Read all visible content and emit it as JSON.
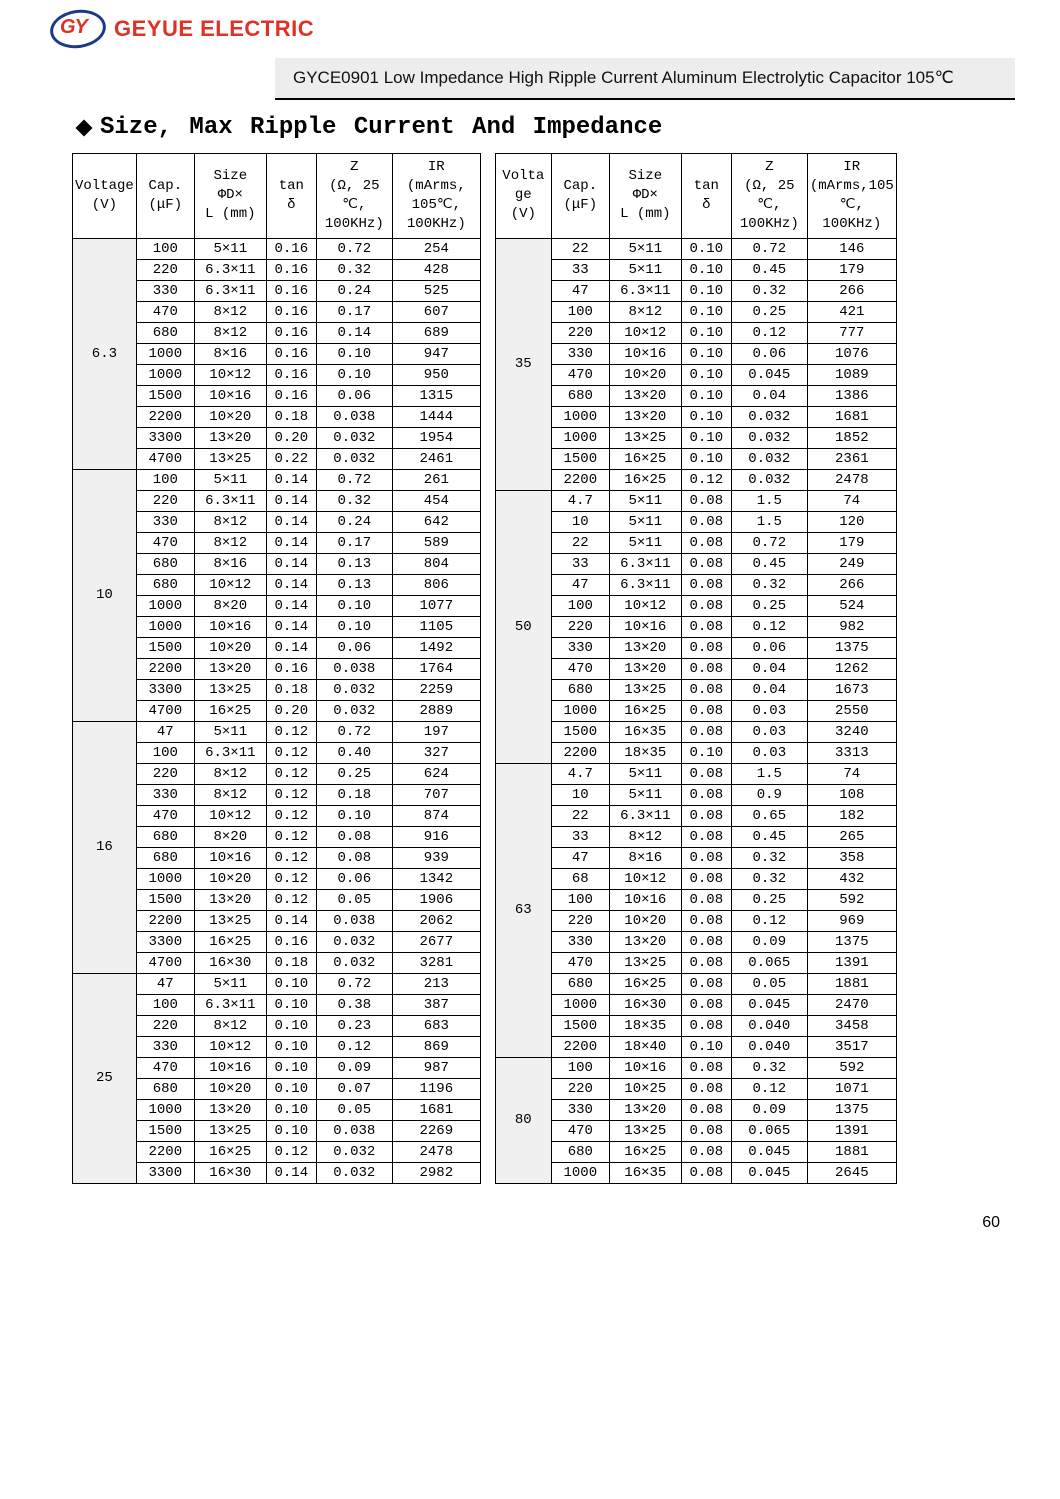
{
  "brand": {
    "logo_initials": "GY",
    "name": "GEYUE ELECTRIC"
  },
  "title_bar": "GYCE0901 Low Impedance High Ripple Current Aluminum Electrolytic Capacitor 105℃",
  "section_title": "Size, Max Ripple Current And Impedance",
  "page_number": "60",
  "colors": {
    "brand_red": "#e03124",
    "brand_blue": "#1b3a8a",
    "title_bg": "#ededed",
    "voltage_bg": "#f0f0f0",
    "border": "#000000",
    "text": "#000000"
  },
  "headers_left": {
    "voltage": "Voltage\n(V)",
    "cap": "Cap.\n(μF)",
    "size": "Size\nΦD×\nL (mm)",
    "tan": "tan\nδ",
    "z": "Z\n(Ω, 25\n℃,\n100KHz)",
    "ir": "IR\n(mArms,\n105℃,\n100KHz)"
  },
  "headers_right": {
    "voltage": "Volta\nge\n(V)",
    "cap": "Cap.\n(μF)",
    "size": "Size\nΦD×\nL (mm)",
    "tan": "tan\nδ",
    "z": "Z\n(Ω, 25\n℃,\n100KHz)",
    "ir": "IR\n(mArms,105\n℃, 100KHz)"
  },
  "left_groups": [
    {
      "voltage": "6.3",
      "rows": [
        {
          "cap": "100",
          "size": "5×11",
          "tan": "0.16",
          "z": "0.72",
          "ir": "254"
        },
        {
          "cap": "220",
          "size": "6.3×11",
          "tan": "0.16",
          "z": "0.32",
          "ir": "428"
        },
        {
          "cap": "330",
          "size": "6.3×11",
          "tan": "0.16",
          "z": "0.24",
          "ir": "525"
        },
        {
          "cap": "470",
          "size": "8×12",
          "tan": "0.16",
          "z": "0.17",
          "ir": "607"
        },
        {
          "cap": "680",
          "size": "8×12",
          "tan": "0.16",
          "z": "0.14",
          "ir": "689"
        },
        {
          "cap": "1000",
          "size": "8×16",
          "tan": "0.16",
          "z": "0.10",
          "ir": "947"
        },
        {
          "cap": "1000",
          "size": "10×12",
          "tan": "0.16",
          "z": "0.10",
          "ir": "950"
        },
        {
          "cap": "1500",
          "size": "10×16",
          "tan": "0.16",
          "z": "0.06",
          "ir": "1315"
        },
        {
          "cap": "2200",
          "size": "10×20",
          "tan": "0.18",
          "z": "0.038",
          "ir": "1444"
        },
        {
          "cap": "3300",
          "size": "13×20",
          "tan": "0.20",
          "z": "0.032",
          "ir": "1954"
        },
        {
          "cap": "4700",
          "size": "13×25",
          "tan": "0.22",
          "z": "0.032",
          "ir": "2461"
        }
      ]
    },
    {
      "voltage": "10",
      "rows": [
        {
          "cap": "100",
          "size": "5×11",
          "tan": "0.14",
          "z": "0.72",
          "ir": "261"
        },
        {
          "cap": "220",
          "size": "6.3×11",
          "tan": "0.14",
          "z": "0.32",
          "ir": "454"
        },
        {
          "cap": "330",
          "size": "8×12",
          "tan": "0.14",
          "z": "0.24",
          "ir": "642"
        },
        {
          "cap": "470",
          "size": "8×12",
          "tan": "0.14",
          "z": "0.17",
          "ir": "589"
        },
        {
          "cap": "680",
          "size": "8×16",
          "tan": "0.14",
          "z": "0.13",
          "ir": "804"
        },
        {
          "cap": "680",
          "size": "10×12",
          "tan": "0.14",
          "z": "0.13",
          "ir": "806"
        },
        {
          "cap": "1000",
          "size": "8×20",
          "tan": "0.14",
          "z": "0.10",
          "ir": "1077"
        },
        {
          "cap": "1000",
          "size": "10×16",
          "tan": "0.14",
          "z": "0.10",
          "ir": "1105"
        },
        {
          "cap": "1500",
          "size": "10×20",
          "tan": "0.14",
          "z": "0.06",
          "ir": "1492"
        },
        {
          "cap": "2200",
          "size": "13×20",
          "tan": "0.16",
          "z": "0.038",
          "ir": "1764"
        },
        {
          "cap": "3300",
          "size": "13×25",
          "tan": "0.18",
          "z": "0.032",
          "ir": "2259"
        },
        {
          "cap": "4700",
          "size": "16×25",
          "tan": "0.20",
          "z": "0.032",
          "ir": "2889"
        }
      ]
    },
    {
      "voltage": "16",
      "rows": [
        {
          "cap": "47",
          "size": "5×11",
          "tan": "0.12",
          "z": "0.72",
          "ir": "197"
        },
        {
          "cap": "100",
          "size": "6.3×11",
          "tan": "0.12",
          "z": "0.40",
          "ir": "327"
        },
        {
          "cap": "220",
          "size": "8×12",
          "tan": "0.12",
          "z": "0.25",
          "ir": "624"
        },
        {
          "cap": "330",
          "size": "8×12",
          "tan": "0.12",
          "z": "0.18",
          "ir": "707"
        },
        {
          "cap": "470",
          "size": "10×12",
          "tan": "0.12",
          "z": "0.10",
          "ir": "874"
        },
        {
          "cap": "680",
          "size": "8×20",
          "tan": "0.12",
          "z": "0.08",
          "ir": "916"
        },
        {
          "cap": "680",
          "size": "10×16",
          "tan": "0.12",
          "z": "0.08",
          "ir": "939"
        },
        {
          "cap": "1000",
          "size": "10×20",
          "tan": "0.12",
          "z": "0.06",
          "ir": "1342"
        },
        {
          "cap": "1500",
          "size": "13×20",
          "tan": "0.12",
          "z": "0.05",
          "ir": "1906"
        },
        {
          "cap": "2200",
          "size": "13×25",
          "tan": "0.14",
          "z": "0.038",
          "ir": "2062"
        },
        {
          "cap": "3300",
          "size": "16×25",
          "tan": "0.16",
          "z": "0.032",
          "ir": "2677"
        },
        {
          "cap": "4700",
          "size": "16×30",
          "tan": "0.18",
          "z": "0.032",
          "ir": "3281"
        }
      ]
    },
    {
      "voltage": "25",
      "rows": [
        {
          "cap": "47",
          "size": "5×11",
          "tan": "0.10",
          "z": "0.72",
          "ir": "213"
        },
        {
          "cap": "100",
          "size": "6.3×11",
          "tan": "0.10",
          "z": "0.38",
          "ir": "387"
        },
        {
          "cap": "220",
          "size": "8×12",
          "tan": "0.10",
          "z": "0.23",
          "ir": "683"
        },
        {
          "cap": "330",
          "size": "10×12",
          "tan": "0.10",
          "z": "0.12",
          "ir": "869"
        },
        {
          "cap": "470",
          "size": "10×16",
          "tan": "0.10",
          "z": "0.09",
          "ir": "987"
        },
        {
          "cap": "680",
          "size": "10×20",
          "tan": "0.10",
          "z": "0.07",
          "ir": "1196"
        },
        {
          "cap": "1000",
          "size": "13×20",
          "tan": "0.10",
          "z": "0.05",
          "ir": "1681"
        },
        {
          "cap": "1500",
          "size": "13×25",
          "tan": "0.10",
          "z": "0.038",
          "ir": "2269"
        },
        {
          "cap": "2200",
          "size": "16×25",
          "tan": "0.12",
          "z": "0.032",
          "ir": "2478"
        },
        {
          "cap": "3300",
          "size": "16×30",
          "tan": "0.14",
          "z": "0.032",
          "ir": "2982"
        }
      ]
    }
  ],
  "right_groups": [
    {
      "voltage": "35",
      "rows": [
        {
          "cap": "22",
          "size": "5×11",
          "tan": "0.10",
          "z": "0.72",
          "ir": "146"
        },
        {
          "cap": "33",
          "size": "5×11",
          "tan": "0.10",
          "z": "0.45",
          "ir": "179"
        },
        {
          "cap": "47",
          "size": "6.3×11",
          "tan": "0.10",
          "z": "0.32",
          "ir": "266"
        },
        {
          "cap": "100",
          "size": "8×12",
          "tan": "0.10",
          "z": "0.25",
          "ir": "421"
        },
        {
          "cap": "220",
          "size": "10×12",
          "tan": "0.10",
          "z": "0.12",
          "ir": "777"
        },
        {
          "cap": "330",
          "size": "10×16",
          "tan": "0.10",
          "z": "0.06",
          "ir": "1076"
        },
        {
          "cap": "470",
          "size": "10×20",
          "tan": "0.10",
          "z": "0.045",
          "ir": "1089"
        },
        {
          "cap": "680",
          "size": "13×20",
          "tan": "0.10",
          "z": "0.04",
          "ir": "1386"
        },
        {
          "cap": "1000",
          "size": "13×20",
          "tan": "0.10",
          "z": "0.032",
          "ir": "1681"
        },
        {
          "cap": "1000",
          "size": "13×25",
          "tan": "0.10",
          "z": "0.032",
          "ir": "1852"
        },
        {
          "cap": "1500",
          "size": "16×25",
          "tan": "0.10",
          "z": "0.032",
          "ir": "2361"
        },
        {
          "cap": "2200",
          "size": "16×25",
          "tan": "0.12",
          "z": "0.032",
          "ir": "2478"
        }
      ]
    },
    {
      "voltage": "50",
      "rows": [
        {
          "cap": "4.7",
          "size": "5×11",
          "tan": "0.08",
          "z": "1.5",
          "ir": "74"
        },
        {
          "cap": "10",
          "size": "5×11",
          "tan": "0.08",
          "z": "1.5",
          "ir": "120"
        },
        {
          "cap": "22",
          "size": "5×11",
          "tan": "0.08",
          "z": "0.72",
          "ir": "179"
        },
        {
          "cap": "33",
          "size": "6.3×11",
          "tan": "0.08",
          "z": "0.45",
          "ir": "249"
        },
        {
          "cap": "47",
          "size": "6.3×11",
          "tan": "0.08",
          "z": "0.32",
          "ir": "266"
        },
        {
          "cap": "100",
          "size": "10×12",
          "tan": "0.08",
          "z": "0.25",
          "ir": "524"
        },
        {
          "cap": "220",
          "size": "10×16",
          "tan": "0.08",
          "z": "0.12",
          "ir": "982"
        },
        {
          "cap": "330",
          "size": "13×20",
          "tan": "0.08",
          "z": "0.06",
          "ir": "1375"
        },
        {
          "cap": "470",
          "size": "13×20",
          "tan": "0.08",
          "z": "0.04",
          "ir": "1262"
        },
        {
          "cap": "680",
          "size": "13×25",
          "tan": "0.08",
          "z": "0.04",
          "ir": "1673"
        },
        {
          "cap": "1000",
          "size": "16×25",
          "tan": "0.08",
          "z": "0.03",
          "ir": "2550"
        },
        {
          "cap": "1500",
          "size": "16×35",
          "tan": "0.08",
          "z": "0.03",
          "ir": "3240"
        },
        {
          "cap": "2200",
          "size": "18×35",
          "tan": "0.10",
          "z": "0.03",
          "ir": "3313"
        }
      ]
    },
    {
      "voltage": "63",
      "rows": [
        {
          "cap": "4.7",
          "size": "5×11",
          "tan": "0.08",
          "z": "1.5",
          "ir": "74"
        },
        {
          "cap": "10",
          "size": "5×11",
          "tan": "0.08",
          "z": "0.9",
          "ir": "108"
        },
        {
          "cap": "22",
          "size": "6.3×11",
          "tan": "0.08",
          "z": "0.65",
          "ir": "182"
        },
        {
          "cap": "33",
          "size": "8×12",
          "tan": "0.08",
          "z": "0.45",
          "ir": "265"
        },
        {
          "cap": "47",
          "size": "8×16",
          "tan": "0.08",
          "z": "0.32",
          "ir": "358"
        },
        {
          "cap": "68",
          "size": "10×12",
          "tan": "0.08",
          "z": "0.32",
          "ir": "432"
        },
        {
          "cap": "100",
          "size": "10×16",
          "tan": "0.08",
          "z": "0.25",
          "ir": "592"
        },
        {
          "cap": "220",
          "size": "10×20",
          "tan": "0.08",
          "z": "0.12",
          "ir": "969"
        },
        {
          "cap": "330",
          "size": "13×20",
          "tan": "0.08",
          "z": "0.09",
          "ir": "1375"
        },
        {
          "cap": "470",
          "size": "13×25",
          "tan": "0.08",
          "z": "0.065",
          "ir": "1391"
        },
        {
          "cap": "680",
          "size": "16×25",
          "tan": "0.08",
          "z": "0.05",
          "ir": "1881"
        },
        {
          "cap": "1000",
          "size": "16×30",
          "tan": "0.08",
          "z": "0.045",
          "ir": "2470"
        },
        {
          "cap": "1500",
          "size": "18×35",
          "tan": "0.08",
          "z": "0.040",
          "ir": "3458"
        },
        {
          "cap": "2200",
          "size": "18×40",
          "tan": "0.10",
          "z": "0.040",
          "ir": "3517"
        }
      ]
    },
    {
      "voltage": "80",
      "rows": [
        {
          "cap": "100",
          "size": "10×16",
          "tan": "0.08",
          "z": "0.32",
          "ir": "592"
        },
        {
          "cap": "220",
          "size": "10×25",
          "tan": "0.08",
          "z": "0.12",
          "ir": "1071"
        },
        {
          "cap": "330",
          "size": "13×20",
          "tan": "0.08",
          "z": "0.09",
          "ir": "1375"
        },
        {
          "cap": "470",
          "size": "13×25",
          "tan": "0.08",
          "z": "0.065",
          "ir": "1391"
        },
        {
          "cap": "680",
          "size": "16×25",
          "tan": "0.08",
          "z": "0.045",
          "ir": "1881"
        },
        {
          "cap": "1000",
          "size": "16×35",
          "tan": "0.08",
          "z": "0.045",
          "ir": "2645"
        }
      ]
    }
  ]
}
